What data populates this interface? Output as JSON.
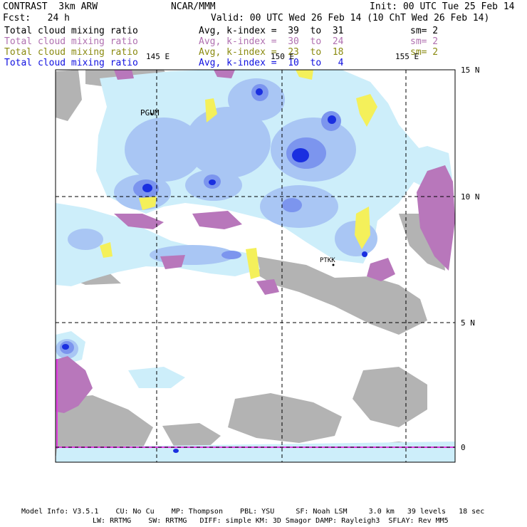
{
  "header": {
    "model": "CONTRAST  3km ARW",
    "center": "NCAR/MMM",
    "init": "Init: 00 UTC Tue 25 Feb 14",
    "fcst": "Fcst:   24 h",
    "valid": "Valid: 00 UTC Wed 26 Feb 14 (10 ChT Wed 26 Feb 14)"
  },
  "legend": [
    {
      "label": "Total cloud mixing ratio",
      "range": "Avg, k-index =  39  to  31",
      "sm": "sm= 2",
      "color": "#000000"
    },
    {
      "label": "Total cloud mixing ratio",
      "range": "Avg, k-index =  30  to  24",
      "sm": "sm= 2",
      "color": "#b070b0"
    },
    {
      "label": "Total cloud mixing ratio",
      "range": "Avg, k-index =  23  to  18",
      "sm": "sm= 2",
      "color": "#8a8a10"
    },
    {
      "label": "Total cloud mixing ratio",
      "range": "Avg, k-index =  10  to   4",
      "sm": "",
      "color": "#1010e0"
    }
  ],
  "map": {
    "lon_labels": [
      "145 E",
      "150 E",
      "155 E"
    ],
    "lat_labels": [
      "15 N",
      "10 N",
      "5 N",
      "0"
    ],
    "stations": [
      "PGUM",
      "PTKK"
    ]
  },
  "footer": {
    "line1": "Model Info: V3.5.1    CU: No Cu    MP: Thompson    PBL: YSU     SF: Noah LSM     3.0 km   39 levels   18 sec",
    "line2": "LW: RRTMG    SW: RRTMG   DIFF: simple KM: 3D Smagor DAMP: Rayleigh3  SFLAY: Rev MM5"
  },
  "colors": {
    "light_blue": "#cdeefa",
    "mid_blue": "#a9c6f4",
    "blue": "#7c95ee",
    "dark_blue": "#1a2fe0",
    "yellow": "#f4f05a",
    "purple": "#b877bb",
    "gray": "#b3b3b3",
    "magenta": "#e03ce0"
  }
}
